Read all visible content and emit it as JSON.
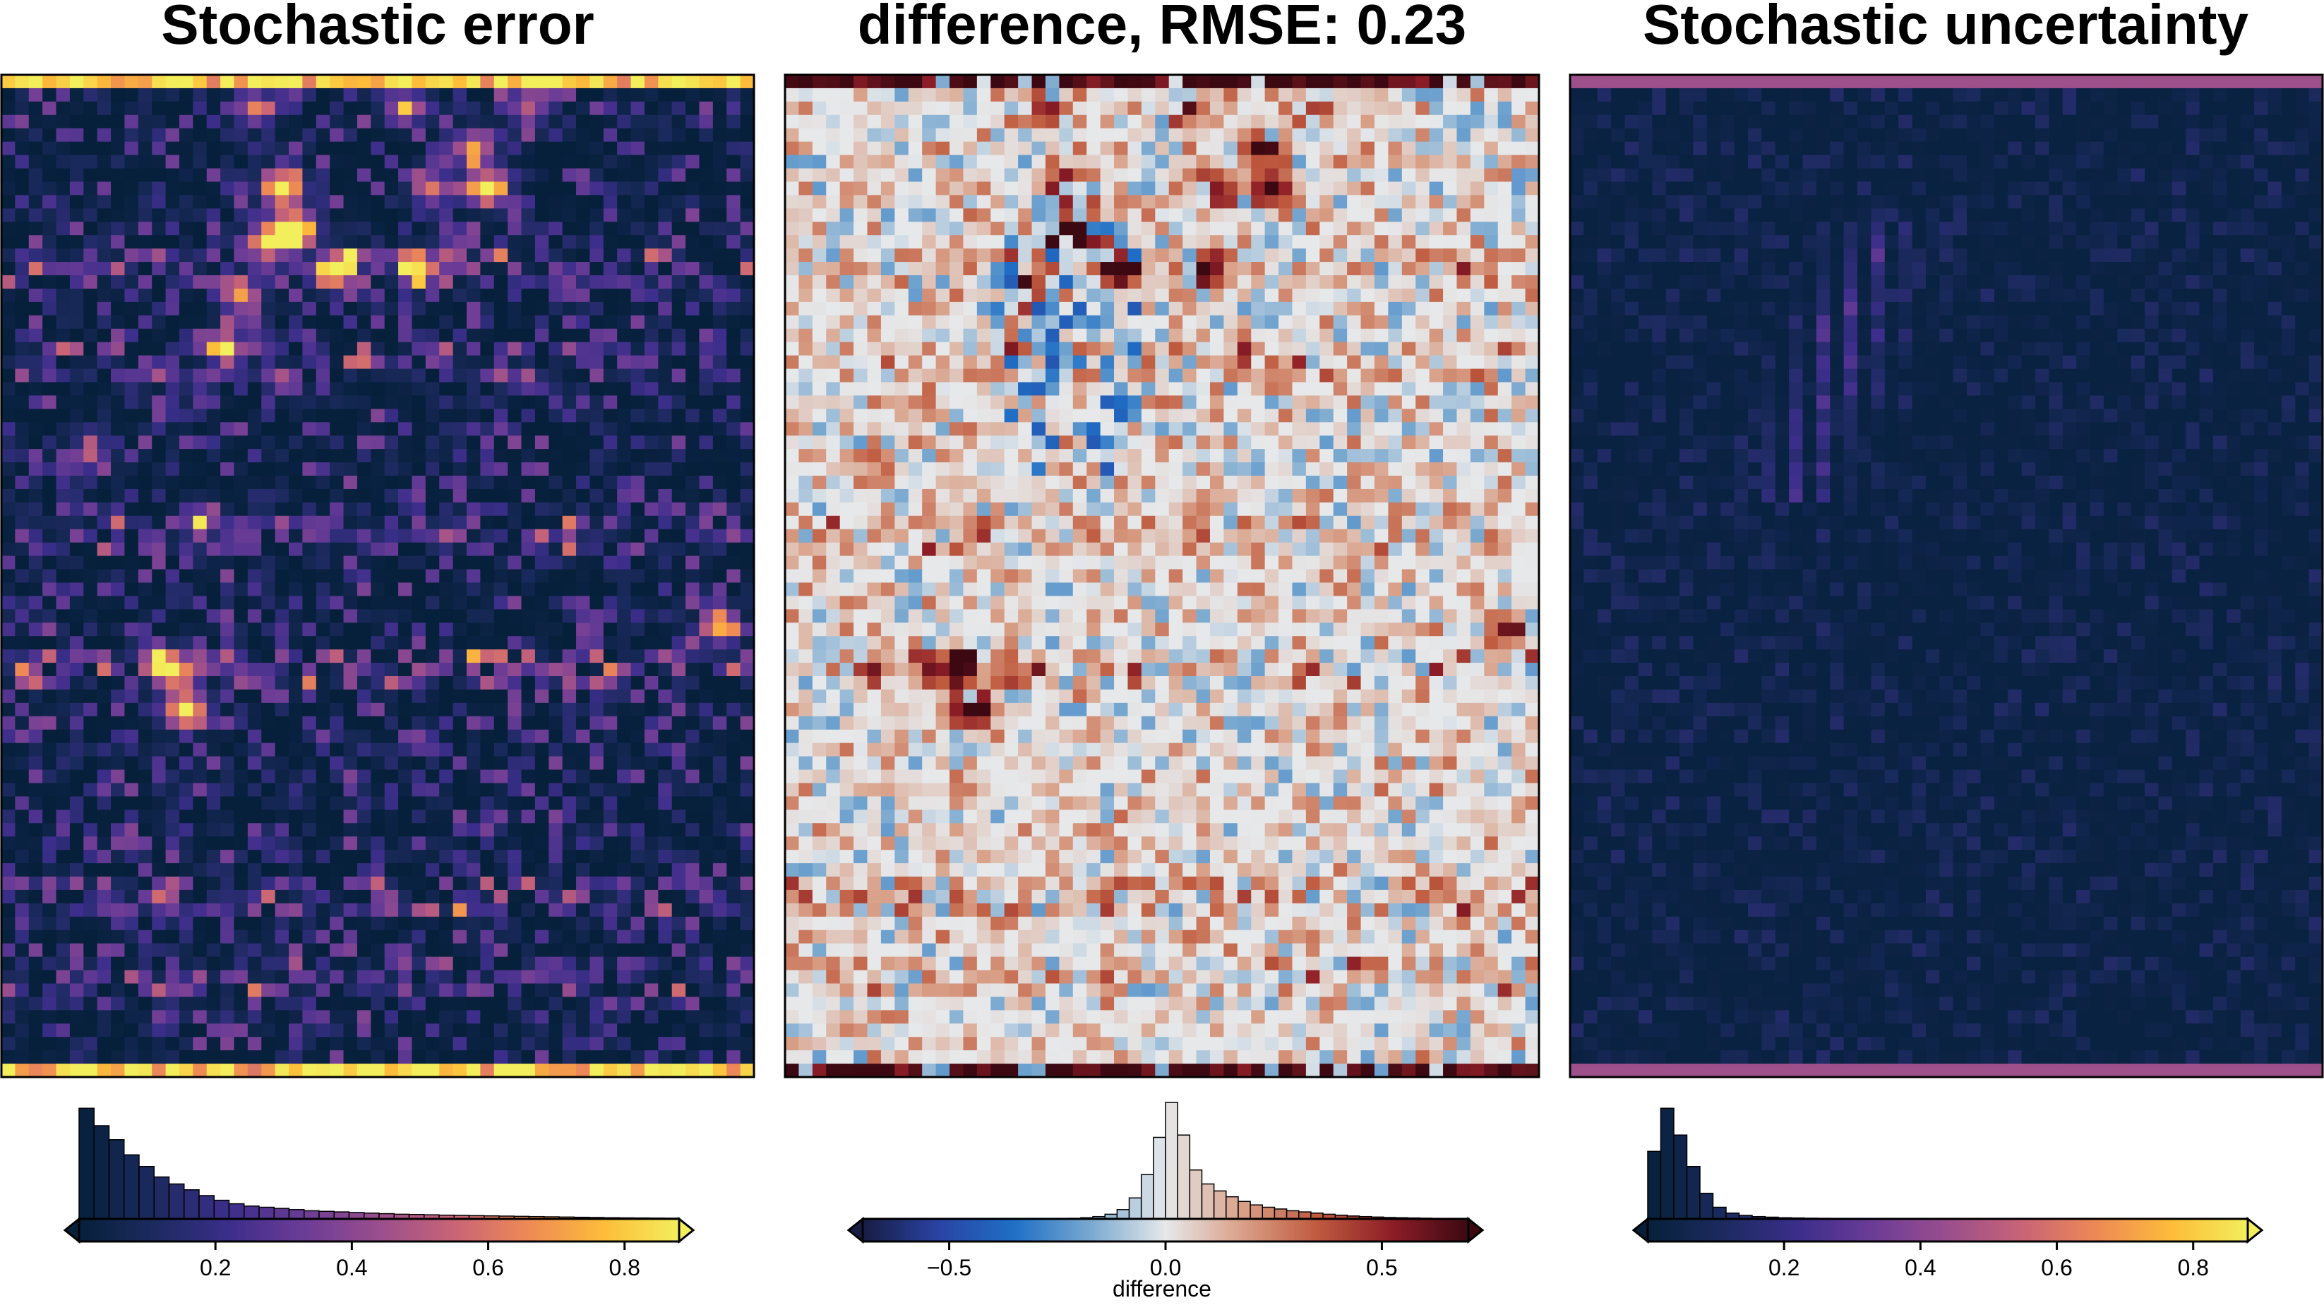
{
  "figure": {
    "panels": [
      {
        "title": "Stochastic error"
      },
      {
        "title": "difference, RMSE: 0.23"
      },
      {
        "title": "Stochastic uncertainty"
      }
    ]
  },
  "chart_data": [
    {
      "type": "heatmap",
      "title": "Stochastic error",
      "colormap": "thermal",
      "colormap_stops": [
        "#06203b",
        "#1c2a5e",
        "#3b2e8a",
        "#6b3c96",
        "#9a4e8d",
        "#c86476",
        "#ee8a55",
        "#fdbd3a",
        "#f3ee5c"
      ],
      "colorbar": {
        "range": [
          0.0,
          0.88
        ],
        "ticks": [
          0.2,
          0.4,
          0.6,
          0.8
        ],
        "tick_labels": [
          "0.2",
          "0.4",
          "0.6",
          "0.8"
        ],
        "label": "",
        "extend": "both",
        "histogram": [
          0.95,
          0.8,
          0.68,
          0.55,
          0.45,
          0.36,
          0.3,
          0.25,
          0.2,
          0.16,
          0.13,
          0.11,
          0.1,
          0.09,
          0.08,
          0.07,
          0.065,
          0.06,
          0.055,
          0.05,
          0.045,
          0.04,
          0.038,
          0.035,
          0.032,
          0.03,
          0.028,
          0.026,
          0.024,
          0.022,
          0.02,
          0.018,
          0.016,
          0.014,
          0.012,
          0.01,
          0.009,
          0.008,
          0.007,
          0.006
        ]
      }
    },
    {
      "type": "heatmap",
      "title": "difference, RMSE: 0.23",
      "colormap": "balance",
      "colormap_stops": [
        "#181c43",
        "#2a43a3",
        "#1f6fc5",
        "#79a8cf",
        "#e6e8ea",
        "#d9a189",
        "#bf5b3f",
        "#8c1d27",
        "#3c0912"
      ],
      "rmse": 0.23,
      "colorbar": {
        "range": [
          -0.7,
          0.7
        ],
        "ticks": [
          -0.5,
          0.0,
          0.5
        ],
        "tick_labels": [
          "−0.5",
          "0.0",
          "0.5"
        ],
        "label": "difference",
        "extend": "both",
        "histogram": [
          0.0,
          0.0,
          0.0,
          0.0,
          0.0,
          0.0,
          0.0,
          0.0,
          0.0,
          0.0,
          0.0,
          0.0,
          0.0,
          0.0,
          0.0,
          0.0,
          0.002,
          0.005,
          0.01,
          0.02,
          0.04,
          0.08,
          0.18,
          0.38,
          0.7,
          1.0,
          0.72,
          0.42,
          0.3,
          0.24,
          0.19,
          0.15,
          0.12,
          0.1,
          0.085,
          0.07,
          0.06,
          0.05,
          0.04,
          0.032,
          0.025,
          0.02,
          0.016,
          0.012,
          0.01,
          0.008,
          0.006,
          0.004,
          0.003,
          0.002
        ]
      }
    },
    {
      "type": "heatmap",
      "title": "Stochastic uncertainty",
      "colormap": "thermal",
      "colormap_stops": [
        "#06203b",
        "#1c2a5e",
        "#3b2e8a",
        "#6b3c96",
        "#9a4e8d",
        "#c86476",
        "#ee8a55",
        "#fdbd3a",
        "#f3ee5c"
      ],
      "colorbar": {
        "range": [
          0.0,
          0.88
        ],
        "ticks": [
          0.2,
          0.4,
          0.6,
          0.8
        ],
        "tick_labels": [
          "0.2",
          "0.4",
          "0.6",
          "0.8"
        ],
        "label": "",
        "extend": "both",
        "histogram": [
          0.58,
          0.95,
          0.72,
          0.45,
          0.22,
          0.1,
          0.05,
          0.03,
          0.02,
          0.015,
          0.01,
          0.008,
          0.006,
          0.005,
          0.004,
          0.003,
          0.002,
          0.002,
          0.001,
          0.001
        ]
      }
    }
  ]
}
